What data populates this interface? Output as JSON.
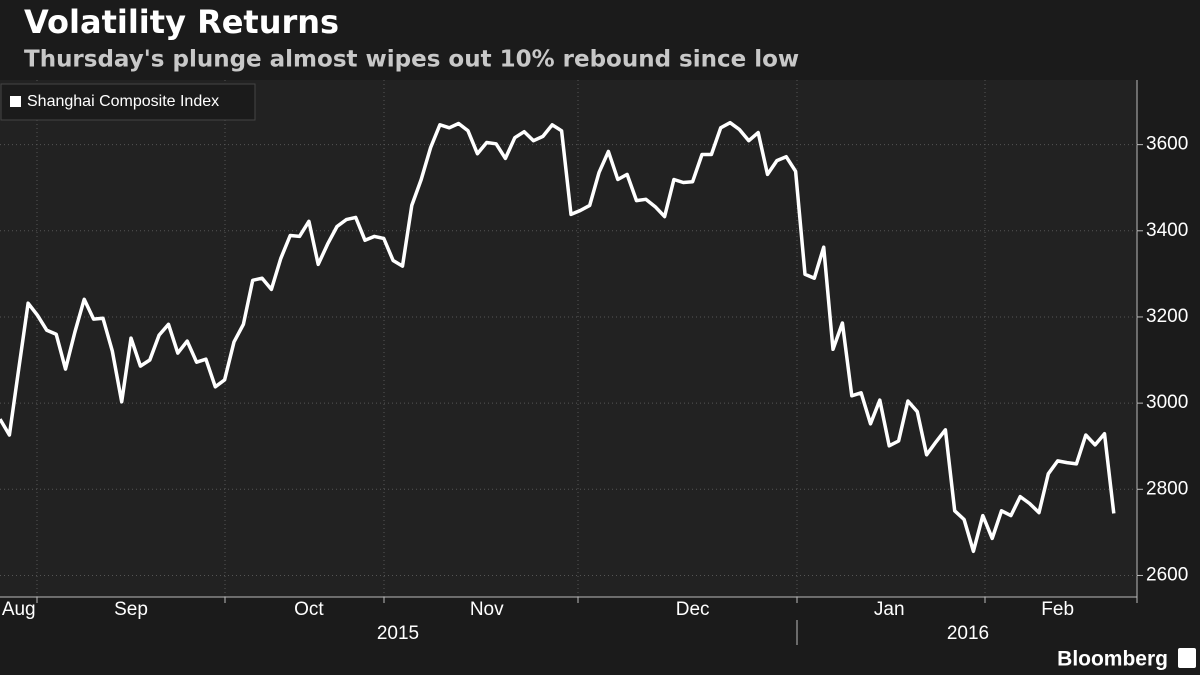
{
  "chart_data": {
    "type": "line",
    "title": "Volatility Returns",
    "subtitle": "Thursday's plunge almost wipes out 10% rebound since low",
    "categories": [
      null,
      null,
      "Aug",
      null,
      null,
      null,
      null,
      null,
      null,
      null,
      null,
      null,
      null,
      null,
      "Sep",
      null,
      null,
      null,
      null,
      null,
      null,
      null,
      null,
      null,
      null,
      null,
      null,
      null,
      null,
      null,
      null,
      null,
      null,
      "Oct",
      null,
      null,
      null,
      null,
      null,
      null,
      null,
      null,
      null,
      null,
      null,
      null,
      null,
      null,
      null,
      null,
      null,
      null,
      "Nov",
      null,
      null,
      null,
      null,
      null,
      null,
      null,
      null,
      null,
      null,
      null,
      null,
      null,
      null,
      null,
      null,
      null,
      null,
      null,
      null,
      null,
      "Dec",
      null,
      null,
      null,
      null,
      null,
      null,
      null,
      null,
      null,
      null,
      null,
      null,
      null,
      null,
      null,
      null,
      null,
      null,
      null,
      null,
      "Jan",
      null,
      null,
      null,
      null,
      null,
      null,
      null,
      null,
      null,
      null,
      null,
      null,
      null,
      null,
      null,
      null,
      null,
      "Feb",
      null,
      null,
      null,
      null,
      null,
      null
    ],
    "years": [
      "2015",
      "2016"
    ],
    "series": [
      {
        "name": "Shanghai Composite Index",
        "color": "#ffffff",
        "values": [
          2963,
          2926,
          3079,
          3232,
          3204,
          3169,
          3160,
          3079,
          3165,
          3241,
          3195,
          3197,
          3121,
          3003,
          3151,
          3086,
          3100,
          3158,
          3183,
          3116,
          3144,
          3095,
          3102,
          3038,
          3054,
          3142,
          3183,
          3285,
          3290,
          3264,
          3336,
          3389,
          3387,
          3422,
          3322,
          3369,
          3410,
          3426,
          3431,
          3378,
          3387,
          3382,
          3331,
          3318,
          3459,
          3519,
          3593,
          3646,
          3639,
          3649,
          3632,
          3579,
          3605,
          3602,
          3568,
          3616,
          3630,
          3609,
          3619,
          3646,
          3632,
          3438,
          3447,
          3459,
          3535,
          3584,
          3519,
          3531,
          3470,
          3473,
          3456,
          3433,
          3519,
          3512,
          3514,
          3577,
          3577,
          3639,
          3651,
          3635,
          3609,
          3628,
          3531,
          3563,
          3572,
          3538,
          3299,
          3290,
          3362,
          3125,
          3186,
          3017,
          3024,
          2952,
          3007,
          2901,
          2912,
          3005,
          2980,
          2880,
          2910,
          2938,
          2750,
          2730,
          2656,
          2739,
          2686,
          2750,
          2739,
          2783,
          2767,
          2746,
          2836,
          2866,
          2862,
          2859,
          2926,
          2903,
          2929,
          2744
        ]
      }
    ],
    "ylim": [
      2550,
      3750
    ],
    "yticks": [
      2600,
      2800,
      3000,
      3200,
      3400,
      3600
    ],
    "grid": true,
    "legend": "top-left",
    "source": "Bloomberg"
  }
}
